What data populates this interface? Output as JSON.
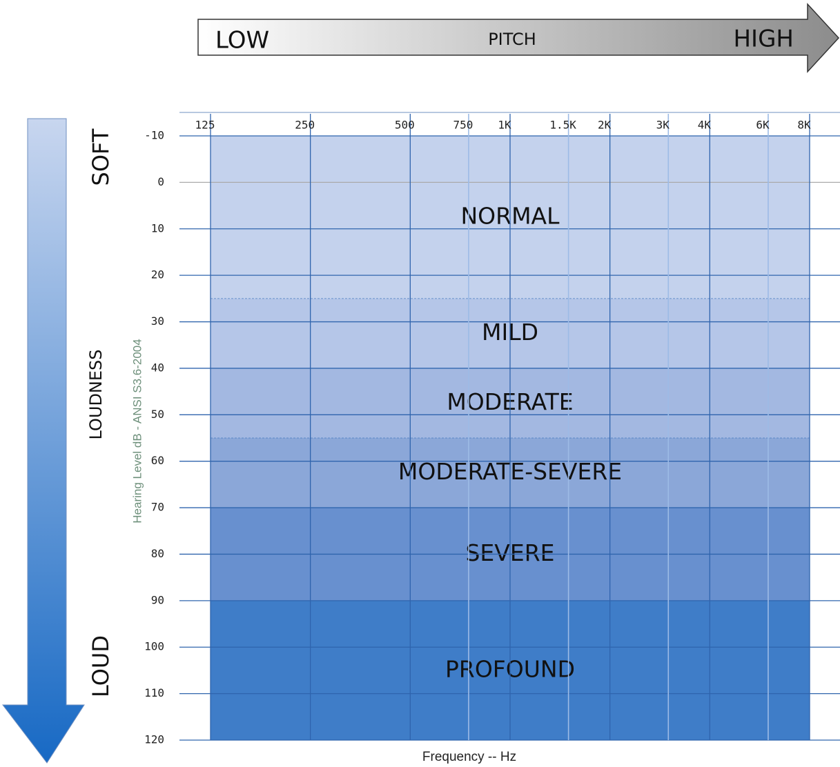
{
  "chart_data": {
    "type": "audiogram",
    "x_label": "Frequency -- Hz",
    "y_label": "Hearing Level dB - ANSI S3.6-2004",
    "xscale": "log",
    "xlim": [
      125,
      8000
    ],
    "xticks": [
      125,
      250,
      500,
      750,
      {
        "value": 1000,
        "label": "1K"
      },
      {
        "value": 1500,
        "label": "1.5K"
      },
      {
        "value": 2000,
        "label": "2K"
      },
      {
        "value": 3000,
        "label": "3K"
      },
      {
        "value": 4000,
        "label": "4K"
      },
      {
        "value": 6000,
        "label": "6K"
      },
      {
        "value": 8000,
        "label": "8K"
      }
    ],
    "ylim": [
      -10,
      120
    ],
    "yticks": [
      -10,
      0,
      10,
      20,
      30,
      40,
      50,
      60,
      70,
      80,
      90,
      100,
      110,
      120
    ],
    "y_inverted": true,
    "bands": [
      {
        "name": "NORMAL",
        "range": [
          -10,
          25
        ],
        "color": "#c4d2ed"
      },
      {
        "name": "MILD",
        "range": [
          25,
          40
        ],
        "color": "#b5c6e8"
      },
      {
        "name": "MODERATE",
        "range": [
          40,
          55
        ],
        "color": "#a3b8e1"
      },
      {
        "name": "MODERATE-SEVERE",
        "range": [
          55,
          70
        ],
        "color": "#8ba7d8"
      },
      {
        "name": "SEVERE",
        "range": [
          70,
          90
        ],
        "color": "#6890cf"
      },
      {
        "name": "PROFOUND",
        "range": [
          90,
          120
        ],
        "color": "#3f7dc8"
      }
    ],
    "pitch_arrow": {
      "low": "LOW",
      "label": "PITCH",
      "high": "HIGH"
    },
    "loudness_arrow": {
      "soft": "SOFT",
      "label": "LOUDNESS",
      "loud": "LOUD"
    }
  }
}
